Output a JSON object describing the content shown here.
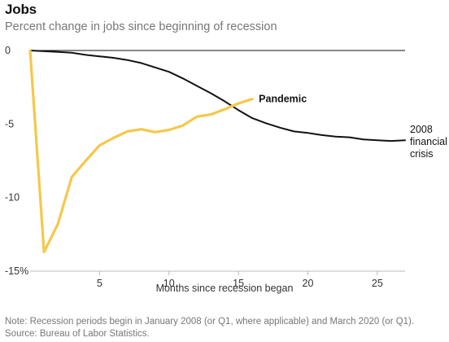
{
  "header": {
    "title": "Jobs",
    "subtitle": "Percent change in jobs since beginning of recession"
  },
  "footer": {
    "note": "Note: Recession periods begin in January 2008 (or Q1, where applicable) and March 2020 (or Q1). Source: Bureau of Labor Statistics."
  },
  "colors": {
    "pandemic": "#f5c84a",
    "financial_crisis": "#121212",
    "zero_line": "#121212",
    "axis": "#bbbbbb",
    "tick_text": "#333333"
  },
  "chart_data": {
    "type": "line",
    "title": "Jobs",
    "subtitle": "Percent change in jobs since beginning of recession",
    "xlabel": "Months since recession began",
    "ylabel": "",
    "xlim": [
      0,
      27
    ],
    "ylim": [
      -15,
      0
    ],
    "x_ticks": [
      5,
      10,
      15,
      20,
      25
    ],
    "y_ticks": [
      {
        "value": 0,
        "label": "0"
      },
      {
        "value": -5,
        "label": "-5"
      },
      {
        "value": -10,
        "label": "-10"
      },
      {
        "value": -15,
        "label": "-15%"
      }
    ],
    "grid": false,
    "series": [
      {
        "name": "2008 financial crisis",
        "label_lines": [
          "2008",
          "financial",
          "crisis"
        ],
        "color": "#121212",
        "x": [
          0,
          1,
          2,
          3,
          4,
          5,
          6,
          7,
          8,
          9,
          10,
          11,
          12,
          13,
          14,
          15,
          16,
          17,
          18,
          19,
          20,
          21,
          22,
          23,
          24,
          25,
          26,
          27
        ],
        "y": [
          0,
          -0.05,
          -0.1,
          -0.15,
          -0.3,
          -0.4,
          -0.5,
          -0.65,
          -0.85,
          -1.15,
          -1.45,
          -1.9,
          -2.4,
          -2.9,
          -3.45,
          -4.05,
          -4.6,
          -4.95,
          -5.25,
          -5.5,
          -5.6,
          -5.75,
          -5.85,
          -5.9,
          -6.05,
          -6.1,
          -6.15,
          -6.1
        ]
      },
      {
        "name": "Pandemic",
        "label_lines": [
          "Pandemic"
        ],
        "color": "#f5c84a",
        "x": [
          0,
          1,
          2,
          3,
          4,
          5,
          6,
          7,
          8,
          9,
          10,
          11,
          12,
          13,
          14,
          15,
          16
        ],
        "y": [
          0,
          -13.7,
          -11.8,
          -8.6,
          -7.5,
          -6.45,
          -5.95,
          -5.5,
          -5.35,
          -5.55,
          -5.4,
          -5.1,
          -4.5,
          -4.35,
          -4.0,
          -3.6,
          -3.3
        ]
      }
    ]
  }
}
